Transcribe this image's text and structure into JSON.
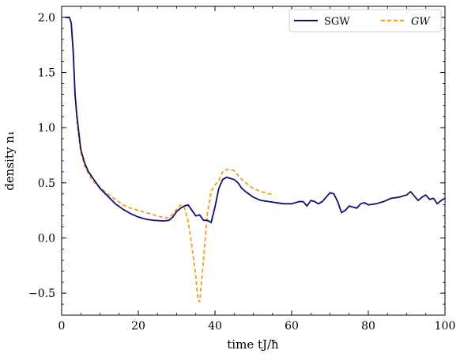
{
  "chart_data": {
    "type": "line",
    "xlabel": "time tJ/ħ",
    "ylabel": "density n₁",
    "xlim": [
      0,
      100
    ],
    "ylim": [
      -0.7,
      2.1
    ],
    "x_ticks": [
      0,
      20,
      40,
      60,
      80,
      100
    ],
    "x_tick_labels": [
      "0",
      "20",
      "40",
      "60",
      "80",
      "100"
    ],
    "y_ticks": [
      -0.5,
      0.0,
      0.5,
      1.0,
      1.5,
      2.0
    ],
    "y_tick_labels": [
      "−0.5",
      "0.0",
      "0.5",
      "1.0",
      "1.5",
      "2.0"
    ],
    "grid": false,
    "legend_position": "top-right",
    "series": [
      {
        "name": "SGW",
        "color": "#101070",
        "style": "solid",
        "x": [
          1,
          2,
          2.5,
          3,
          3.5,
          4,
          4.5,
          5,
          6,
          7,
          8,
          9,
          10,
          12,
          14,
          16,
          18,
          20,
          22,
          24,
          26,
          27,
          28,
          29,
          30,
          31,
          32,
          33,
          34,
          35,
          36,
          37,
          38,
          39,
          40,
          41,
          42,
          43,
          44,
          45,
          46,
          47,
          48,
          50,
          52,
          54,
          56,
          58,
          60,
          62,
          63,
          64,
          65,
          66,
          67,
          68,
          69,
          70,
          71,
          72,
          73,
          74,
          75,
          76,
          77,
          78,
          79,
          80,
          82,
          84,
          86,
          88,
          90,
          91,
          92,
          93,
          94,
          95,
          96,
          97,
          98,
          99,
          100
        ],
        "values": [
          2.0,
          2.0,
          1.95,
          1.7,
          1.3,
          1.1,
          0.95,
          0.8,
          0.68,
          0.6,
          0.55,
          0.5,
          0.45,
          0.38,
          0.31,
          0.26,
          0.22,
          0.19,
          0.17,
          0.16,
          0.155,
          0.155,
          0.16,
          0.19,
          0.24,
          0.27,
          0.29,
          0.3,
          0.25,
          0.2,
          0.21,
          0.16,
          0.16,
          0.14,
          0.28,
          0.45,
          0.53,
          0.55,
          0.54,
          0.53,
          0.5,
          0.45,
          0.42,
          0.37,
          0.34,
          0.33,
          0.32,
          0.31,
          0.31,
          0.33,
          0.33,
          0.29,
          0.34,
          0.33,
          0.31,
          0.33,
          0.37,
          0.41,
          0.4,
          0.33,
          0.23,
          0.25,
          0.29,
          0.28,
          0.27,
          0.31,
          0.32,
          0.3,
          0.31,
          0.33,
          0.36,
          0.37,
          0.39,
          0.42,
          0.38,
          0.34,
          0.37,
          0.39,
          0.35,
          0.36,
          0.31,
          0.34,
          0.36
        ]
      },
      {
        "name": "GW",
        "color": "#f2a01a",
        "style": "dashed",
        "x": [
          1,
          2,
          2.5,
          3,
          3.5,
          4,
          4.5,
          5,
          6,
          7,
          8,
          10,
          12,
          14,
          16,
          18,
          20,
          22,
          24,
          26,
          28,
          30,
          31,
          32,
          33,
          34,
          35,
          35.5,
          36,
          37,
          38,
          39,
          40,
          41,
          42,
          43,
          44,
          45,
          46,
          47,
          48,
          50,
          52,
          54,
          55
        ],
        "values": [
          2.0,
          2.0,
          1.95,
          1.7,
          1.3,
          1.05,
          0.9,
          0.78,
          0.65,
          0.58,
          0.52,
          0.46,
          0.4,
          0.35,
          0.3,
          0.27,
          0.25,
          0.23,
          0.21,
          0.19,
          0.18,
          0.26,
          0.3,
          0.28,
          0.15,
          -0.08,
          -0.35,
          -0.55,
          -0.58,
          -0.2,
          0.22,
          0.42,
          0.48,
          0.52,
          0.6,
          0.62,
          0.62,
          0.61,
          0.57,
          0.53,
          0.5,
          0.45,
          0.42,
          0.4,
          0.4
        ]
      }
    ]
  }
}
